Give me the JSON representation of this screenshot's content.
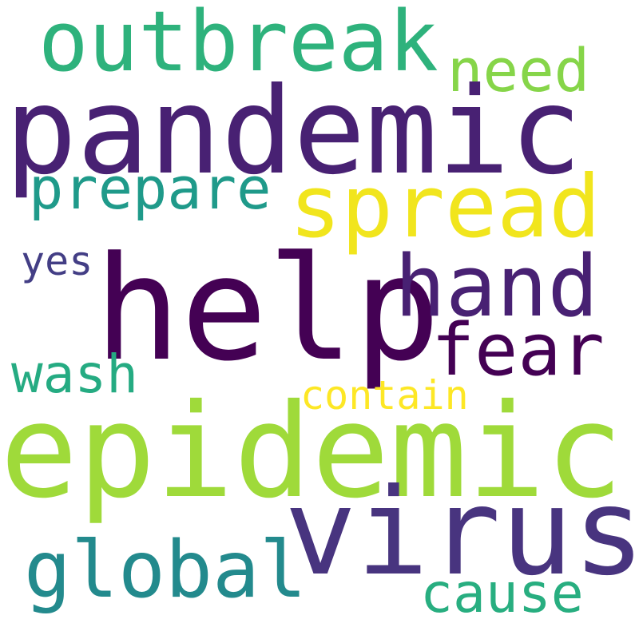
{
  "words": [
    {
      "text": "outbreak",
      "color": "#2eb27c"
    },
    {
      "text": "need",
      "color": "#86d549"
    },
    {
      "text": "pandemic",
      "color": "#482173"
    },
    {
      "text": "prepare",
      "color": "#1f9a8a"
    },
    {
      "text": "spread",
      "color": "#f1e51d"
    },
    {
      "text": "yes",
      "color": "#433e85"
    },
    {
      "text": "help",
      "color": "#440154"
    },
    {
      "text": "hand",
      "color": "#482173"
    },
    {
      "text": "fear",
      "color": "#440154"
    },
    {
      "text": "wash",
      "color": "#25ab82"
    },
    {
      "text": "contain",
      "color": "#fde725"
    },
    {
      "text": "epidemic",
      "color": "#9fda3a"
    },
    {
      "text": "virus",
      "color": "#48347f"
    },
    {
      "text": "global",
      "color": "#238a8d"
    },
    {
      "text": "cause",
      "color": "#28ae80"
    }
  ]
}
